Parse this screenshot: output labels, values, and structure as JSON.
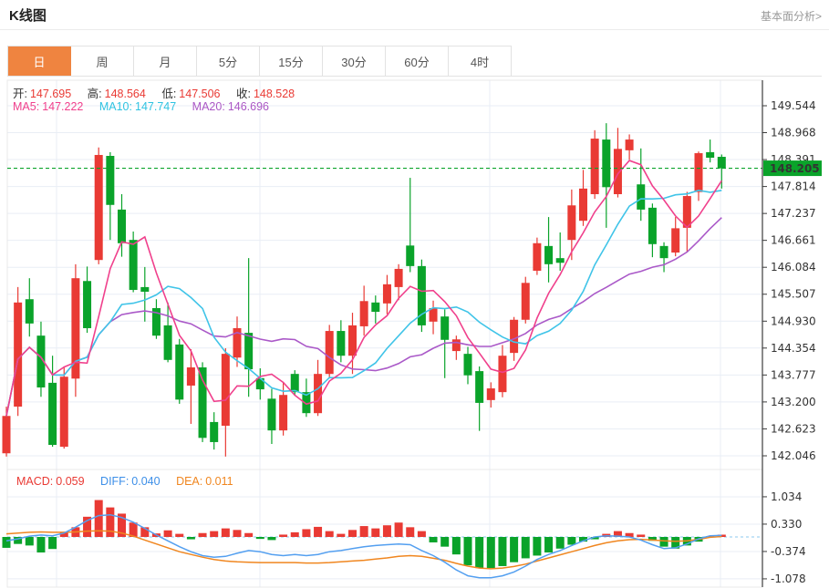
{
  "header": {
    "title": "K线图",
    "link": "基本面分析>"
  },
  "tabs": {
    "active": "日",
    "items": [
      "日",
      "周",
      "月",
      "5分",
      "15分",
      "30分",
      "60分",
      "4时"
    ]
  },
  "info": {
    "open_label": "开:",
    "open": "147.695",
    "high_label": "高:",
    "high": "148.564",
    "low_label": "低:",
    "low": "147.506",
    "close_label": "收:",
    "close": "148.528"
  },
  "ma": {
    "ma5_label": "MA5:",
    "ma5": "147.222",
    "ma10_label": "MA10:",
    "ma10": "147.747",
    "ma20_label": "MA20:",
    "ma20": "146.696"
  },
  "macd_info": {
    "macd_label": "MACD:",
    "macd": "0.059",
    "diff_label": "DIFF:",
    "diff": "0.040",
    "dea_label": "DEA:",
    "dea": "0.011"
  },
  "price_badge": "148.205",
  "colors": {
    "up": "#e93a34",
    "down": "#0aa32a",
    "price_line": "#0aa32a",
    "badge_bg": "#0aa32a",
    "tab_active": "#ef8440",
    "ma5": "#f0408c",
    "ma10": "#40c4e8",
    "ma20": "#aa59c8",
    "diff": "#539ff0",
    "dea": "#f0861f",
    "grid": "#e9eef5",
    "axis": "#3c3c3c",
    "zero_line": "#a5d3f2"
  },
  "chart_data": [
    {
      "type": "candlestick",
      "title": "K线图 (daily)",
      "legend": [
        "MA5",
        "MA10",
        "MA20"
      ],
      "grid": true,
      "ylim": [
        142.046,
        149.544
      ],
      "y_ticks": [
        "149.544",
        "148.968",
        "148.391",
        "147.814",
        "147.237",
        "146.661",
        "146.084",
        "145.507",
        "144.930",
        "144.354",
        "143.777",
        "143.200",
        "142.623",
        "142.046"
      ],
      "current_price": 148.205,
      "ma_periods": [
        5,
        10,
        20
      ],
      "candles_ohlc": [
        [
          142.1,
          143.1,
          142.03,
          142.9
        ],
        [
          143.1,
          145.66,
          142.9,
          145.33
        ],
        [
          145.4,
          145.85,
          144.6,
          144.88
        ],
        [
          144.62,
          144.92,
          143.31,
          143.51
        ],
        [
          143.61,
          144.19,
          142.24,
          142.28
        ],
        [
          142.24,
          143.96,
          142.2,
          143.74
        ],
        [
          143.7,
          146.15,
          143.31,
          145.85
        ],
        [
          145.79,
          146.1,
          144.68,
          144.78
        ],
        [
          146.24,
          148.65,
          146.15,
          148.49
        ],
        [
          148.47,
          148.55,
          146.67,
          147.42
        ],
        [
          147.32,
          147.65,
          146.31,
          146.6
        ],
        [
          146.67,
          146.85,
          145.55,
          145.6
        ],
        [
          145.66,
          146.09,
          144.92,
          145.56
        ],
        [
          145.21,
          145.4,
          144.55,
          144.62
        ],
        [
          144.84,
          145.33,
          144.05,
          144.1
        ],
        [
          144.43,
          144.55,
          143.16,
          143.25
        ],
        [
          143.55,
          144.33,
          142.73,
          143.94
        ],
        [
          143.94,
          144.05,
          142.34,
          142.43
        ],
        [
          142.77,
          142.98,
          142.18,
          142.34
        ],
        [
          142.69,
          144.35,
          142.03,
          144.23
        ],
        [
          144.15,
          145.03,
          143.95,
          144.78
        ],
        [
          144.68,
          146.28,
          143.31,
          143.9
        ],
        [
          143.71,
          143.92,
          143.25,
          143.47
        ],
        [
          143.27,
          143.48,
          142.3,
          142.59
        ],
        [
          142.59,
          143.61,
          142.48,
          143.35
        ],
        [
          143.8,
          143.88,
          143.35,
          143.41
        ],
        [
          143.41,
          143.7,
          142.88,
          142.96
        ],
        [
          142.96,
          144.1,
          142.9,
          143.8
        ],
        [
          143.8,
          144.85,
          143.72,
          144.72
        ],
        [
          144.72,
          144.95,
          144.05,
          144.19
        ],
        [
          144.19,
          145.11,
          143.8,
          144.84
        ],
        [
          144.82,
          145.69,
          144.62,
          145.36
        ],
        [
          145.33,
          145.48,
          144.88,
          145.13
        ],
        [
          145.31,
          145.92,
          145.08,
          145.72
        ],
        [
          145.66,
          146.15,
          145.38,
          146.05
        ],
        [
          146.55,
          148.0,
          145.98,
          146.11
        ],
        [
          146.11,
          146.25,
          144.7,
          144.84
        ],
        [
          144.92,
          145.37,
          144.65,
          145.21
        ],
        [
          145.03,
          145.18,
          143.71,
          144.53
        ],
        [
          144.29,
          144.62,
          144.1,
          144.54
        ],
        [
          144.23,
          144.38,
          143.58,
          143.77
        ],
        [
          143.86,
          143.96,
          142.58,
          143.18
        ],
        [
          143.24,
          143.62,
          143.08,
          143.49
        ],
        [
          143.41,
          144.42,
          143.3,
          144.19
        ],
        [
          144.25,
          145.02,
          144.08,
          144.96
        ],
        [
          144.96,
          145.88,
          144.88,
          145.75
        ],
        [
          146.01,
          146.72,
          145.92,
          146.6
        ],
        [
          146.54,
          147.16,
          145.76,
          146.15
        ],
        [
          146.28,
          146.83,
          146.01,
          146.18
        ],
        [
          146.67,
          147.75,
          146.24,
          147.41
        ],
        [
          147.08,
          148.17,
          146.97,
          147.77
        ],
        [
          147.65,
          149.02,
          147.55,
          148.84
        ],
        [
          148.82,
          149.17,
          146.93,
          147.8
        ],
        [
          147.65,
          149.07,
          147.58,
          148.62
        ],
        [
          148.59,
          148.93,
          148.39,
          148.82
        ],
        [
          147.86,
          148.63,
          147.08,
          147.32
        ],
        [
          147.36,
          147.45,
          146.3,
          146.58
        ],
        [
          146.54,
          146.62,
          145.98,
          146.28
        ],
        [
          146.4,
          147.16,
          146.32,
          146.92
        ],
        [
          146.93,
          147.7,
          146.4,
          147.61
        ],
        [
          147.695,
          148.564,
          147.506,
          148.528
        ],
        [
          148.55,
          148.82,
          148.33,
          148.43
        ],
        [
          148.45,
          148.5,
          147.77,
          148.205
        ]
      ]
    },
    {
      "type": "bar",
      "title": "MACD",
      "grid": true,
      "ylim": [
        -1.3,
        1.3
      ],
      "y_ticks": [
        "1.034",
        "0.330",
        "-0.374",
        "-1.078"
      ],
      "histogram": [
        -0.28,
        -0.18,
        -0.22,
        -0.4,
        -0.31,
        0.13,
        0.25,
        0.52,
        0.95,
        0.76,
        0.6,
        0.37,
        0.25,
        0.09,
        0.17,
        0.08,
        -0.06,
        0.1,
        0.15,
        0.22,
        0.18,
        0.1,
        -0.05,
        -0.08,
        0.06,
        0.12,
        0.2,
        0.26,
        0.15,
        0.08,
        0.18,
        0.28,
        0.22,
        0.3,
        0.37,
        0.25,
        0.15,
        -0.14,
        -0.25,
        -0.45,
        -0.73,
        -0.8,
        -0.8,
        -0.75,
        -0.65,
        -0.55,
        -0.48,
        -0.4,
        -0.3,
        -0.2,
        -0.12,
        -0.06,
        0.08,
        0.15,
        0.1,
        0.06,
        -0.1,
        -0.25,
        -0.3,
        -0.22,
        -0.12,
        0.02,
        0.059
      ],
      "diff": [
        -0.1,
        -0.05,
        0.02,
        0.05,
        0.03,
        0.1,
        0.25,
        0.42,
        0.55,
        0.57,
        0.5,
        0.38,
        0.22,
        0.05,
        -0.1,
        -0.25,
        -0.38,
        -0.48,
        -0.52,
        -0.5,
        -0.42,
        -0.35,
        -0.38,
        -0.45,
        -0.48,
        -0.45,
        -0.48,
        -0.45,
        -0.38,
        -0.35,
        -0.3,
        -0.25,
        -0.22,
        -0.2,
        -0.18,
        -0.2,
        -0.35,
        -0.48,
        -0.65,
        -0.85,
        -1.0,
        -1.05,
        -1.05,
        -1.0,
        -0.9,
        -0.75,
        -0.58,
        -0.45,
        -0.35,
        -0.22,
        -0.1,
        0.0,
        0.03,
        0.02,
        0.0,
        -0.08,
        -0.2,
        -0.3,
        -0.28,
        -0.18,
        -0.05,
        0.03,
        0.04
      ],
      "dea": [
        0.08,
        0.1,
        0.12,
        0.13,
        0.12,
        0.12,
        0.13,
        0.15,
        0.16,
        0.15,
        0.1,
        0.02,
        -0.08,
        -0.18,
        -0.28,
        -0.38,
        -0.45,
        -0.52,
        -0.58,
        -0.62,
        -0.64,
        -0.65,
        -0.66,
        -0.66,
        -0.66,
        -0.66,
        -0.67,
        -0.67,
        -0.66,
        -0.64,
        -0.62,
        -0.6,
        -0.57,
        -0.54,
        -0.5,
        -0.48,
        -0.5,
        -0.55,
        -0.6,
        -0.68,
        -0.75,
        -0.8,
        -0.82,
        -0.8,
        -0.76,
        -0.7,
        -0.62,
        -0.54,
        -0.46,
        -0.38,
        -0.3,
        -0.22,
        -0.15,
        -0.1,
        -0.07,
        -0.06,
        -0.08,
        -0.1,
        -0.11,
        -0.1,
        -0.06,
        -0.01,
        0.011
      ]
    }
  ]
}
